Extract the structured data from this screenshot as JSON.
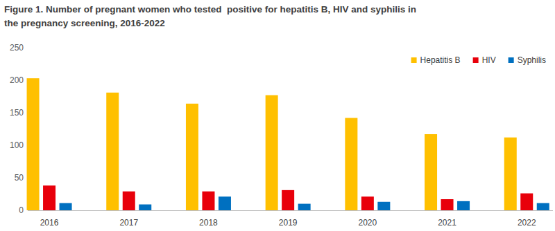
{
  "chart_data": {
    "type": "bar",
    "title": "Figure 1. Number of pregnant women who tested  positive for hepatitis B, HIV and syphilis in the pregnancy screening, 2016-2022",
    "categories": [
      "2016",
      "2017",
      "2018",
      "2019",
      "2020",
      "2021",
      "2022"
    ],
    "series": [
      {
        "name": "Hepatitis B",
        "color": "#ffc000",
        "values": [
          203,
          181,
          164,
          177,
          142,
          117,
          112
        ]
      },
      {
        "name": "HIV",
        "color": "#e8000b",
        "values": [
          38,
          29,
          29,
          31,
          21,
          17,
          26
        ]
      },
      {
        "name": "Syphilis",
        "color": "#0070c0",
        "values": [
          11,
          9,
          21,
          10,
          13,
          14,
          11
        ]
      }
    ],
    "ylim": [
      0,
      250
    ],
    "yticks": [
      0,
      50,
      100,
      150,
      200,
      250
    ],
    "grid": false,
    "legend": "top-right"
  }
}
